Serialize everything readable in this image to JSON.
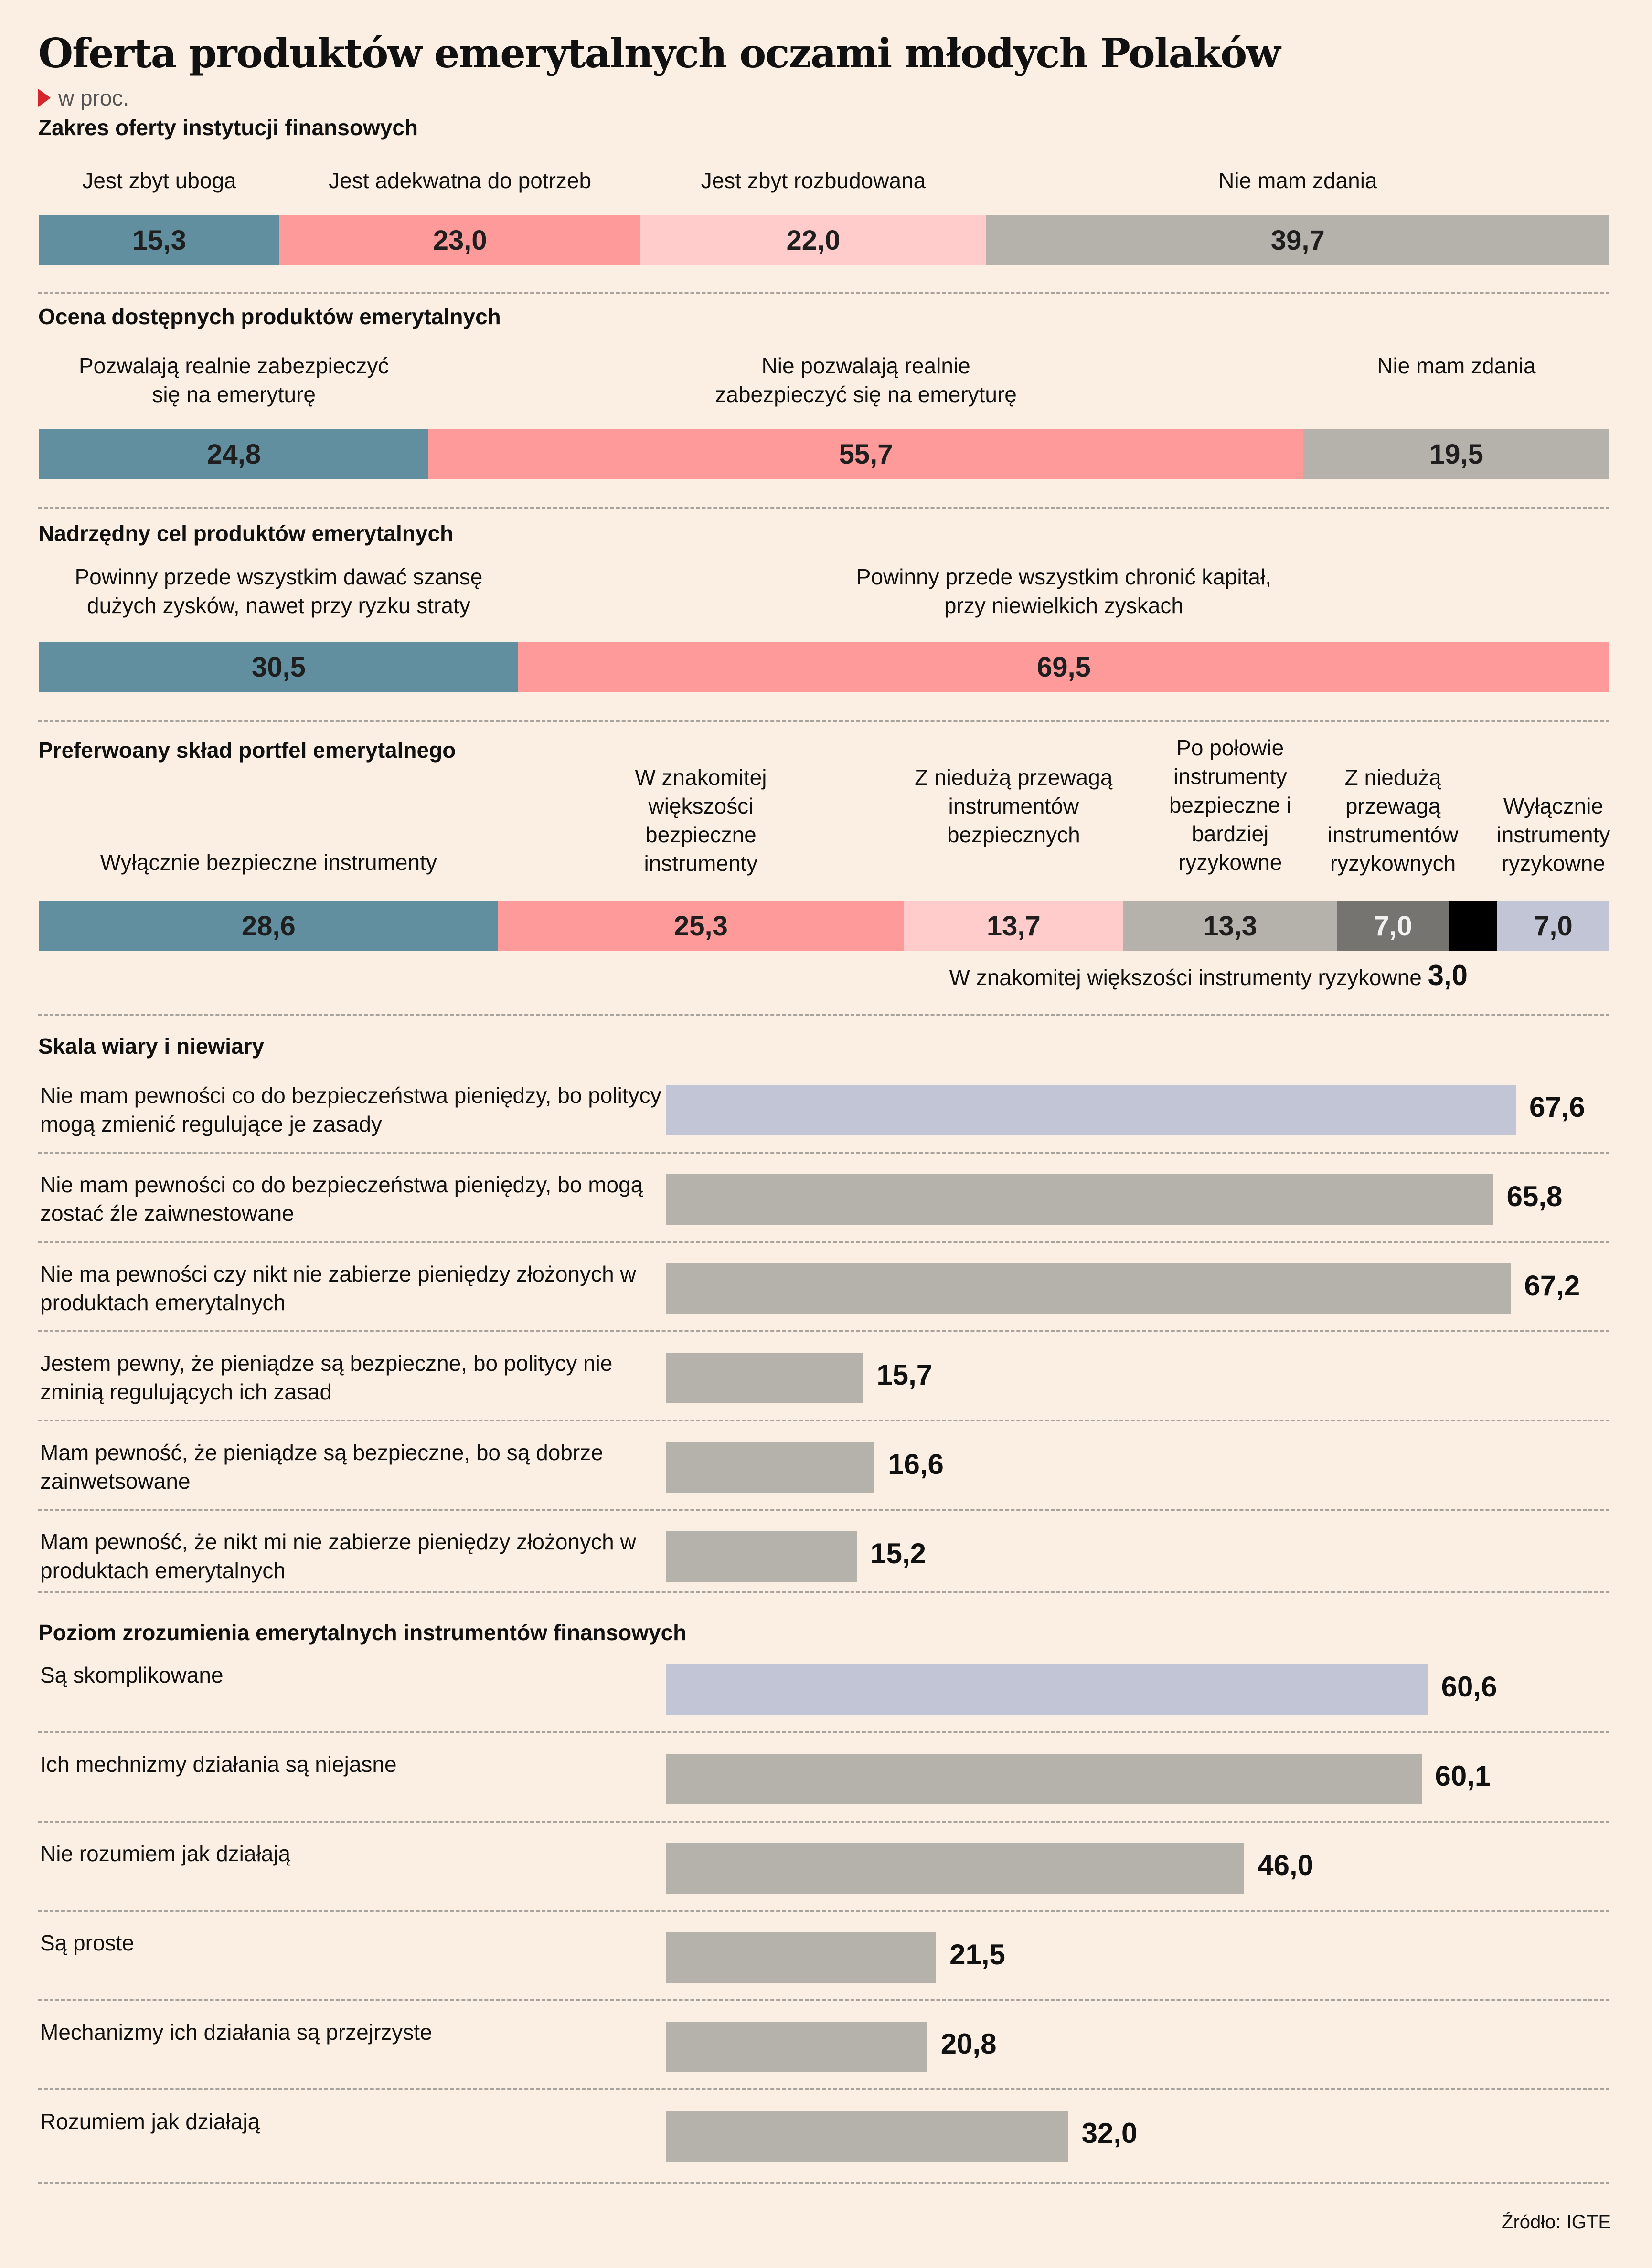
{
  "title": "Oferta produktów emerytalnych oczami młodych Polaków",
  "unit_label": "w proc.",
  "source": "Źródło: IGTE",
  "colors": {
    "blue": "#628f9f",
    "pink": "#fe9a9a",
    "light_pink": "#ffcccb",
    "gray": "#b4b2aa",
    "dark_gray": "#757470",
    "black": "#000000",
    "lavender": "#c2c5d6"
  },
  "chart_data": [
    {
      "type": "bar",
      "stacked": true,
      "title": "Zakres oferty instytucji finansowych",
      "categories": [
        "Jest zbyt uboga",
        "Jest adekwatna do potrzeb",
        "Jest zbyt rozbudowana",
        "Nie mam zdania"
      ],
      "values": [
        15.3,
        23.0,
        22.0,
        39.7
      ],
      "value_labels": [
        "15,3",
        "23,0",
        "22,0",
        "39,7"
      ],
      "colors": [
        "blue",
        "pink",
        "light_pink",
        "gray"
      ]
    },
    {
      "type": "bar",
      "stacked": true,
      "title": "Ocena dostępnych produktów emerytalnych",
      "categories": [
        "Pozwalają realnie zabezpieczyć się na emeryturę",
        "Nie pozwalają realnie zabezpieczyć się na emeryturę",
        "Nie mam zdania"
      ],
      "values": [
        24.8,
        55.7,
        19.5
      ],
      "value_labels": [
        "24,8",
        "55,7",
        "19,5"
      ],
      "colors": [
        "blue",
        "pink",
        "gray"
      ]
    },
    {
      "type": "bar",
      "stacked": true,
      "title": "Nadrzędny cel produktów emerytalnych",
      "categories": [
        "Powinny przede wszystkim dawać szansę dużych zysków, nawet przy ryzku straty",
        "Powinny przede wszystkim chronić kapitał, przy niewielkich zyskach"
      ],
      "values": [
        30.5,
        69.5
      ],
      "value_labels": [
        "30,5",
        "69,5"
      ],
      "colors": [
        "blue",
        "pink"
      ]
    },
    {
      "type": "bar",
      "stacked": true,
      "title": "Preferwoany skład portfel emerytalnego",
      "categories": [
        "Wyłącznie bezpieczne instrumenty",
        "W znakomitej większości bezpieczne instrumenty",
        "Z niedużą przewagą instrumentów bezpiecznych",
        "Po połowie instrumenty bezpieczne i bardziej ryzykowne",
        "Z niedużą przewagą instrumentów ryzykownych",
        "W znakomitej większości instrumenty ryzykowne",
        "Wyłącznie instrumenty ryzykowne"
      ],
      "values": [
        28.6,
        25.3,
        13.7,
        13.3,
        7.0,
        3.0,
        7.0
      ],
      "value_labels": [
        "28,6",
        "25,3",
        "13,7",
        "13,3",
        "7,0",
        "3,0",
        "7,0"
      ],
      "colors": [
        "blue",
        "pink",
        "light_pink",
        "gray",
        "dark_gray",
        "black",
        "lavender"
      ]
    },
    {
      "type": "bar",
      "orientation": "horizontal",
      "title": "Skala wiary i niewiary",
      "categories": [
        "Nie mam pewności co do bezpieczeństwa pieniędzy, bo politycy mogą zmienić regulujące je zasady",
        "Nie mam pewności co do bezpieczeństwa pieniędzy, bo mogą zostać źle zaiwnestowane",
        "Nie ma pewności czy nikt nie zabierze pieniędzy złożonych w produktach emerytalnych",
        "Jestem pewny, że pieniądze są bezpieczne, bo politycy nie zminią regulujących ich zasad",
        "Mam pewność, że pieniądze są bezpieczne, bo są dobrze zainwetsowane",
        "Mam pewność, że nikt mi nie zabierze pieniędzy złożonych w produktach emerytalnych"
      ],
      "values": [
        67.6,
        65.8,
        67.2,
        15.7,
        16.6,
        15.2
      ],
      "value_labels": [
        "67,6",
        "65,8",
        "67,2",
        "15,7",
        "16,6",
        "15,2"
      ],
      "colors": [
        "lavender",
        "gray",
        "gray",
        "gray",
        "gray",
        "gray"
      ]
    },
    {
      "type": "bar",
      "orientation": "horizontal",
      "title": "Poziom zrozumienia emerytalnych instrumentów finansowych",
      "categories": [
        "Są skomplikowane",
        "Ich mechnizmy działania są niejasne",
        "Nie rozumiem jak działają",
        "Są proste",
        "Mechanizmy ich działania są przejrzyste",
        "Rozumiem jak działają"
      ],
      "values": [
        60.6,
        60.1,
        46.0,
        21.5,
        20.8,
        32.0
      ],
      "value_labels": [
        "60,6",
        "60,1",
        "46,0",
        "21,5",
        "20,8",
        "32,0"
      ],
      "colors": [
        "lavender",
        "gray",
        "gray",
        "gray",
        "gray",
        "gray"
      ]
    }
  ]
}
